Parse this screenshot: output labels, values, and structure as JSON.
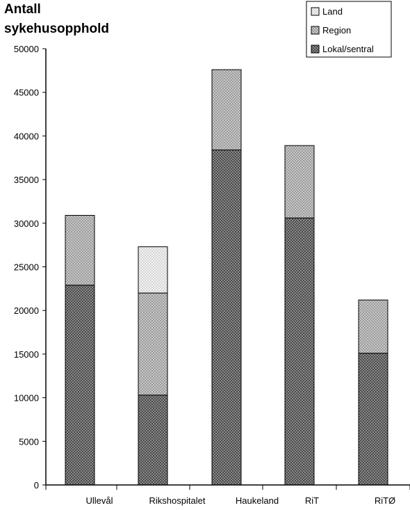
{
  "chart_data": {
    "type": "bar",
    "stacked": true,
    "ylabel_lines": [
      "Antall",
      "sykehusopphold"
    ],
    "categories": [
      "Ullevål",
      "Rikshospitalet",
      "Haukeland",
      "RiT",
      "RiTØ"
    ],
    "series": [
      {
        "name": "Lokal/sentral",
        "values": [
          22900,
          10300,
          38400,
          30600,
          15100
        ]
      },
      {
        "name": "Region",
        "values": [
          8000,
          11700,
          9200,
          8300,
          6100
        ]
      },
      {
        "name": "Land",
        "values": [
          0,
          5300,
          0,
          0,
          0
        ]
      }
    ],
    "ylim": [
      0,
      50000
    ],
    "yticks": [
      0,
      5000,
      10000,
      15000,
      20000,
      25000,
      30000,
      35000,
      40000,
      45000,
      50000
    ],
    "ytick_labels": [
      "0",
      "5000",
      "10000",
      "15000",
      "20000",
      "25000",
      "30000",
      "35000",
      "40000",
      "45000",
      "50000"
    ],
    "legend_order": [
      "Land",
      "Region",
      "Lokal/sentral"
    ],
    "legend_position": "top-right",
    "colors": {
      "Lokal/sentral": "#5a5a5a",
      "Region": "#a8a8a8",
      "Land": "#dedede"
    },
    "grid": false
  }
}
